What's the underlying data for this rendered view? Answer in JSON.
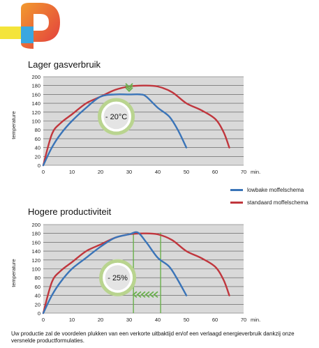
{
  "colors": {
    "lowbake": "#3a74b8",
    "standaard": "#c0363d",
    "badge_ring": "#b9d48f",
    "arrow_green": "#6ab04c",
    "grid_bg": "#d9d9d9",
    "logo_orange": "#f29a2e",
    "logo_red": "#e23a3f",
    "logo_blue": "#3aa7e0",
    "logo_yellow": "#f4e43a"
  },
  "legend": {
    "lowbake": "lowbake moffelschema",
    "standaard": "standaard moffelschema"
  },
  "footer": {
    "text": "Uw productie zal de voordelen plukken van een verkorte uitbaktijd en/of een verlaagd energieverbruik dankzij onze versnelde productformulaties."
  },
  "chart_data": [
    {
      "type": "line",
      "title": "Lager gasverbruik",
      "xlabel": "min.",
      "ylabel": "temperature",
      "xlim": [
        0,
        70
      ],
      "ylim": [
        0,
        200
      ],
      "xticks": [
        0,
        10,
        20,
        30,
        40,
        50,
        60,
        70
      ],
      "yticks": [
        0,
        20,
        40,
        60,
        80,
        100,
        120,
        140,
        160,
        180,
        200
      ],
      "grid": true,
      "annotation": "- 20°C",
      "series": [
        {
          "name": "lowbake moffelschema",
          "x": [
            0,
            3,
            6,
            10,
            15,
            20,
            25,
            30,
            34,
            36,
            40,
            44,
            47,
            50
          ],
          "y": [
            0,
            40,
            70,
            100,
            130,
            155,
            160,
            160,
            160,
            155,
            130,
            110,
            80,
            40
          ]
        },
        {
          "name": "standaard moffelschema",
          "x": [
            0,
            3,
            6,
            10,
            15,
            20,
            25,
            30,
            35,
            40,
            45,
            50,
            55,
            60,
            63,
            65
          ],
          "y": [
            0,
            70,
            95,
            115,
            140,
            155,
            170,
            178,
            180,
            178,
            165,
            140,
            125,
            105,
            75,
            40
          ]
        }
      ]
    },
    {
      "type": "line",
      "title": "Hogere productiviteit",
      "xlabel": "min.",
      "ylabel": "temperature",
      "xlim": [
        0,
        70
      ],
      "ylim": [
        0,
        200
      ],
      "xticks": [
        0,
        10,
        20,
        30,
        40,
        50,
        60,
        70
      ],
      "yticks": [
        0,
        20,
        40,
        60,
        80,
        100,
        120,
        140,
        160,
        180,
        200
      ],
      "grid": true,
      "annotation": "- 25%",
      "series": [
        {
          "name": "lowbake moffelschema",
          "x": [
            0,
            3,
            6,
            10,
            15,
            20,
            25,
            30,
            33,
            36,
            40,
            44,
            47,
            50
          ],
          "y": [
            0,
            40,
            70,
            100,
            125,
            150,
            170,
            178,
            182,
            160,
            125,
            105,
            75,
            40
          ]
        },
        {
          "name": "standaard moffelschema",
          "x": [
            0,
            3,
            6,
            10,
            15,
            20,
            25,
            30,
            35,
            40,
            45,
            50,
            55,
            60,
            63,
            65
          ],
          "y": [
            0,
            70,
            95,
            115,
            140,
            155,
            170,
            178,
            180,
            178,
            165,
            140,
            125,
            105,
            75,
            40
          ]
        }
      ]
    }
  ]
}
